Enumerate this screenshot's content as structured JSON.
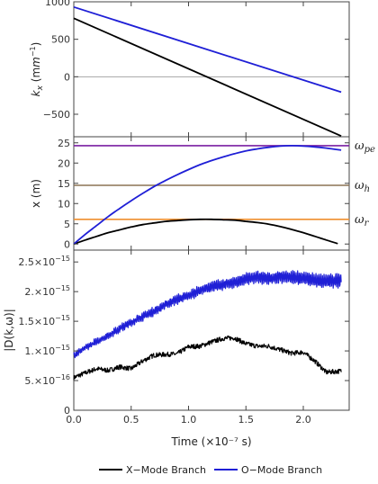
{
  "chart_data": [
    {
      "type": "line",
      "ylabel": "k_x (m^-1)",
      "ylabel_main": "k",
      "ylabel_sub": "x",
      "ylabel_unit": " (m",
      "ylabel_unit_sup": "−1",
      "ylabel_unit_close": ")",
      "xlim": [
        0,
        2.4
      ],
      "ylim": [
        -800,
        1000
      ],
      "yticks": [
        1000,
        500,
        0,
        -500
      ],
      "ytick_labels": [
        "1000",
        "500",
        "0",
        "−500"
      ],
      "grid": false,
      "reference_lines": [
        {
          "y": 0,
          "color": "#a6a6a6"
        }
      ],
      "series": [
        {
          "name": "X-Mode Branch",
          "color": "#000000",
          "x": [
            0,
            2.33
          ],
          "y": [
            780,
            -790
          ]
        },
        {
          "name": "O-Mode Branch",
          "color": "#1f1fd6",
          "x": [
            0,
            2.33
          ],
          "y": [
            930,
            -205
          ]
        }
      ]
    },
    {
      "type": "line",
      "ylabel": "x (m)",
      "xlim": [
        0,
        2.4
      ],
      "ylim": [
        -1.5,
        26.5
      ],
      "yticks": [
        0,
        5,
        10,
        15,
        20,
        25
      ],
      "ytick_labels": [
        "0",
        "5",
        "10",
        "15",
        "20",
        "25"
      ],
      "grid": false,
      "reference_lines": [
        {
          "y": 24.3,
          "label": "ω",
          "sub": "pe",
          "color": "#7a1fa2"
        },
        {
          "y": 14.5,
          "label": "ω",
          "sub": "h",
          "color": "#8b7355"
        },
        {
          "y": 6.1,
          "label": "ω",
          "sub": "r",
          "color": "#ef8f2f"
        }
      ],
      "series": [
        {
          "name": "X-Mode Branch",
          "color": "#000000",
          "x": [
            0,
            0.1,
            0.2,
            0.3,
            0.4,
            0.5,
            0.6,
            0.7,
            0.8,
            0.9,
            1.0,
            1.1,
            1.2,
            1.3,
            1.4,
            1.5,
            1.6,
            1.7,
            1.8,
            1.9,
            2.0,
            2.1,
            2.2,
            2.3
          ],
          "y": [
            0.0,
            1.0,
            1.9,
            2.8,
            3.5,
            4.2,
            4.8,
            5.2,
            5.6,
            5.8,
            6.0,
            6.1,
            6.1,
            6.0,
            5.9,
            5.6,
            5.3,
            4.9,
            4.3,
            3.6,
            2.8,
            1.9,
            1.0,
            0.1
          ]
        },
        {
          "name": "O-Mode Branch",
          "color": "#1f1fd6",
          "x": [
            0,
            0.1,
            0.2,
            0.3,
            0.4,
            0.5,
            0.6,
            0.7,
            0.8,
            0.9,
            1.0,
            1.1,
            1.2,
            1.3,
            1.4,
            1.5,
            1.6,
            1.7,
            1.8,
            1.9,
            2.0,
            2.1,
            2.2,
            2.33
          ],
          "y": [
            0.0,
            2.4,
            4.6,
            6.8,
            8.8,
            10.7,
            12.5,
            14.2,
            15.7,
            17.1,
            18.4,
            19.6,
            20.6,
            21.5,
            22.3,
            23.0,
            23.5,
            23.9,
            24.2,
            24.3,
            24.2,
            24.0,
            23.7,
            23.2
          ]
        }
      ]
    },
    {
      "type": "line",
      "ylabel": "|D(k,ω)|",
      "xlabel": "Time (×10⁻⁷ s)",
      "xlim": [
        0,
        2.4
      ],
      "ylim": [
        0,
        2.7e-15
      ],
      "xticks": [
        0.0,
        0.5,
        1.0,
        1.5,
        2.0
      ],
      "xtick_labels": [
        "0.0",
        "0.5",
        "1.0",
        "1.5",
        "2.0"
      ],
      "yticks": [
        0,
        5e-16,
        1e-15,
        1.5e-15,
        2e-15,
        2.5e-15
      ],
      "ytick_labels": [
        {
          "mant": "0",
          "exp": ""
        },
        {
          "mant": "5.×10",
          "exp": "−16"
        },
        {
          "mant": "1.×10",
          "exp": "−15"
        },
        {
          "mant": "1.5×10",
          "exp": "−15"
        },
        {
          "mant": "2.×10",
          "exp": "−15"
        },
        {
          "mant": "2.5×10",
          "exp": "−15"
        }
      ],
      "grid": false,
      "series": [
        {
          "name": "X-Mode Branch",
          "color": "#000000",
          "x": [
            0,
            0.1,
            0.2,
            0.3,
            0.4,
            0.5,
            0.6,
            0.7,
            0.8,
            0.9,
            1.0,
            1.1,
            1.2,
            1.3,
            1.4,
            1.5,
            1.6,
            1.7,
            1.8,
            1.9,
            2.0,
            2.1,
            2.2,
            2.33
          ],
          "y": [
            5.5e-16,
            6.3e-16,
            7e-16,
            6.7e-16,
            7.3e-16,
            7e-16,
            8.3e-16,
            9.3e-16,
            9.4e-16,
            9.5e-16,
            1.07e-15,
            1.08e-15,
            1.15e-15,
            1.21e-15,
            1.22e-15,
            1.12e-15,
            1.08e-15,
            1.08e-15,
            1.02e-15,
            9.6e-16,
            9.8e-16,
            8.3e-16,
            6.4e-16,
            6.6e-16
          ]
        },
        {
          "name": "O-Mode Branch",
          "color": "#1f1fd6",
          "x": [
            0,
            0.1,
            0.2,
            0.3,
            0.4,
            0.5,
            0.6,
            0.7,
            0.8,
            0.9,
            1.0,
            1.1,
            1.2,
            1.3,
            1.4,
            1.5,
            1.6,
            1.7,
            1.8,
            1.9,
            2.0,
            2.1,
            2.2,
            2.33
          ],
          "y": [
            9.3e-16,
            1.05e-15,
            1.16e-15,
            1.26e-15,
            1.38e-15,
            1.48e-15,
            1.58e-15,
            1.67e-15,
            1.78e-15,
            1.87e-15,
            1.93e-15,
            2.02e-15,
            2.08e-15,
            2.12e-15,
            2.15e-15,
            2.22e-15,
            2.24e-15,
            2.22e-15,
            2.25e-15,
            2.24e-15,
            2.23e-15,
            2.19e-15,
            2.18e-15,
            2.18e-15
          ]
        }
      ]
    }
  ],
  "legend": {
    "placement": "bottom",
    "items": [
      {
        "label": "X−Mode Branch",
        "color": "#000000"
      },
      {
        "label": "O−Mode Branch",
        "color": "#1f1fd6"
      }
    ]
  }
}
